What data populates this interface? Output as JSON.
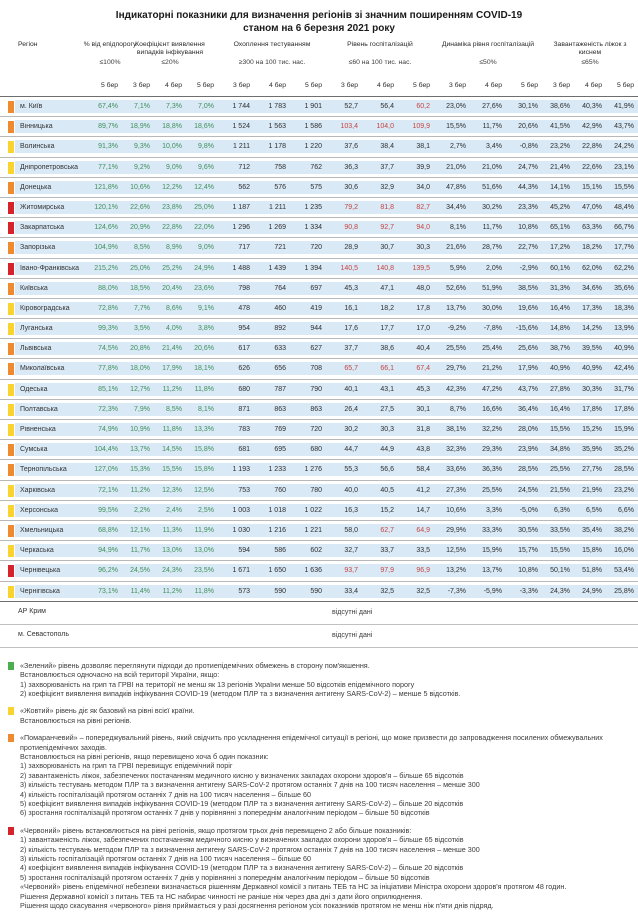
{
  "title": {
    "line1": "Індикаторні показники для визначення регіонів зі значним поширенням COVID-19",
    "line2": "станом на 6 березня 2021 року"
  },
  "colors": {
    "level_green": "#4cae4f",
    "level_yellow": "#fbd32e",
    "level_orange": "#ef8b2e",
    "level_red": "#d6232b",
    "value_green": "#3f8f5a",
    "value_red": "#c64540",
    "row_background": "#d9e9f6"
  },
  "table": {
    "region_header": "Регіон",
    "groups": [
      {
        "key": "epid",
        "label": "% від епідпорогу",
        "threshold": "≤100%",
        "dates": [
          "5 бер"
        ]
      },
      {
        "key": "coef",
        "label": "Коефіцієнт виявлення випадків інфікування",
        "threshold": "≤20%",
        "dates": [
          "3 бер",
          "4 бер",
          "5 бер"
        ]
      },
      {
        "key": "test",
        "label": "Охоплення тестуванням",
        "threshold": "≥300 на 100 тис. нас.",
        "dates": [
          "3 бер",
          "4 бер",
          "5 бер"
        ]
      },
      {
        "key": "hosp",
        "label": "Рівень госпіталізацій",
        "threshold": "≤60 на 100 тис. нас.",
        "dates": [
          "3 бер",
          "4 бер",
          "5 бер"
        ]
      },
      {
        "key": "dyn",
        "label": "Динаміка рівня госпіталізацій",
        "threshold": "≤50%",
        "dates": [
          "3 бер",
          "4 бер",
          "5 бер"
        ]
      },
      {
        "key": "beds",
        "label": "Завантаженість ліжок з киснем",
        "threshold": "≤65%",
        "dates": [
          "3 бер",
          "4 бер",
          "5 бер"
        ]
      }
    ],
    "rows": [
      {
        "region": "м. Київ",
        "level": "orange",
        "epid": "67,4%",
        "coef": [
          "7,1%",
          "7,3%",
          "7,0%"
        ],
        "test": [
          "1 744",
          "1 783",
          "1 901"
        ],
        "hosp": [
          "52,7",
          "56,4",
          "60,2"
        ],
        "hosp_red": [
          false,
          false,
          true
        ],
        "dyn": [
          "23,0%",
          "27,6%",
          "30,1%"
        ],
        "beds": [
          "38,6%",
          "40,3%",
          "41,9%"
        ]
      },
      {
        "region": "Вінницька",
        "level": "orange",
        "epid": "89,7%",
        "coef": [
          "18,9%",
          "18,8%",
          "18,6%"
        ],
        "test": [
          "1 524",
          "1 563",
          "1 586"
        ],
        "hosp": [
          "103,4",
          "104,0",
          "109,9"
        ],
        "hosp_red": [
          true,
          true,
          true
        ],
        "dyn": [
          "15,5%",
          "11,7%",
          "20,6%"
        ],
        "beds": [
          "41,5%",
          "42,9%",
          "43,7%"
        ]
      },
      {
        "region": "Волинська",
        "level": "yellow",
        "epid": "91,3%",
        "coef": [
          "9,3%",
          "10,0%",
          "9,8%"
        ],
        "test": [
          "1 211",
          "1 178",
          "1 220"
        ],
        "hosp": [
          "37,6",
          "38,4",
          "38,1"
        ],
        "hosp_red": [
          false,
          false,
          false
        ],
        "dyn": [
          "2,7%",
          "3,4%",
          "-0,8%"
        ],
        "beds": [
          "23,2%",
          "22,8%",
          "24,2%"
        ]
      },
      {
        "region": "Дніпропетровська",
        "level": "yellow",
        "epid": "77,1%",
        "coef": [
          "9,2%",
          "9,0%",
          "9,6%"
        ],
        "test": [
          "712",
          "758",
          "762"
        ],
        "hosp": [
          "36,3",
          "37,7",
          "39,9"
        ],
        "hosp_red": [
          false,
          false,
          false
        ],
        "dyn": [
          "21,0%",
          "21,0%",
          "24,7%"
        ],
        "beds": [
          "21,4%",
          "22,6%",
          "23,1%"
        ]
      },
      {
        "region": "Донецька",
        "level": "orange",
        "epid": "121,8%",
        "coef": [
          "10,6%",
          "12,2%",
          "12,4%"
        ],
        "test": [
          "562",
          "576",
          "575"
        ],
        "hosp": [
          "30,6",
          "32,9",
          "34,0"
        ],
        "hosp_red": [
          false,
          false,
          false
        ],
        "dyn": [
          "47,8%",
          "51,6%",
          "44,3%"
        ],
        "beds": [
          "14,1%",
          "15,1%",
          "15,5%"
        ]
      },
      {
        "region": "Житомирська",
        "level": "red",
        "epid": "120,1%",
        "coef": [
          "22,6%",
          "23,8%",
          "25,0%"
        ],
        "test": [
          "1 187",
          "1 211",
          "1 235"
        ],
        "hosp": [
          "79,2",
          "81,8",
          "82,7"
        ],
        "hosp_red": [
          true,
          true,
          true
        ],
        "dyn": [
          "34,4%",
          "30,2%",
          "23,3%"
        ],
        "beds": [
          "45,2%",
          "47,0%",
          "48,4%"
        ]
      },
      {
        "region": "Закарпатська",
        "level": "red",
        "epid": "124,6%",
        "coef": [
          "20,9%",
          "22,8%",
          "22,0%"
        ],
        "test": [
          "1 296",
          "1 269",
          "1 334"
        ],
        "hosp": [
          "90,8",
          "92,7",
          "94,0"
        ],
        "hosp_red": [
          true,
          true,
          true
        ],
        "dyn": [
          "8,1%",
          "11,7%",
          "10,8%"
        ],
        "beds": [
          "65,1%",
          "63,3%",
          "66,7%"
        ]
      },
      {
        "region": "Запорізька",
        "level": "orange",
        "epid": "104,9%",
        "coef": [
          "8,5%",
          "8,9%",
          "9,0%"
        ],
        "test": [
          "717",
          "721",
          "720"
        ],
        "hosp": [
          "28,9",
          "30,7",
          "30,3"
        ],
        "hosp_red": [
          false,
          false,
          false
        ],
        "dyn": [
          "21,6%",
          "28,7%",
          "22,7%"
        ],
        "beds": [
          "17,2%",
          "18,2%",
          "17,7%"
        ]
      },
      {
        "region": "Івано-Франківська",
        "level": "red",
        "epid": "215,2%",
        "coef": [
          "25,0%",
          "25,2%",
          "24,9%"
        ],
        "test": [
          "1 488",
          "1 439",
          "1 394"
        ],
        "hosp": [
          "140,5",
          "140,8",
          "139,5"
        ],
        "hosp_red": [
          true,
          true,
          true
        ],
        "dyn": [
          "5,9%",
          "2,0%",
          "-2,9%"
        ],
        "beds": [
          "60,1%",
          "62,0%",
          "62,2%"
        ]
      },
      {
        "region": "Київська",
        "level": "orange",
        "epid": "88,0%",
        "coef": [
          "18,5%",
          "20,4%",
          "23,6%"
        ],
        "test": [
          "798",
          "764",
          "697"
        ],
        "hosp": [
          "45,3",
          "47,1",
          "48,0"
        ],
        "hosp_red": [
          false,
          false,
          false
        ],
        "dyn": [
          "52,6%",
          "51,9%",
          "38,5%"
        ],
        "beds": [
          "31,3%",
          "34,6%",
          "35,6%"
        ]
      },
      {
        "region": "Кіровоградська",
        "level": "yellow",
        "epid": "72,8%",
        "coef": [
          "7,7%",
          "8,6%",
          "9,1%"
        ],
        "test": [
          "478",
          "460",
          "419"
        ],
        "hosp": [
          "16,1",
          "18,2",
          "17,8"
        ],
        "hosp_red": [
          false,
          false,
          false
        ],
        "dyn": [
          "13,7%",
          "30,0%",
          "19,6%"
        ],
        "beds": [
          "16,4%",
          "17,3%",
          "18,3%"
        ]
      },
      {
        "region": "Луганська",
        "level": "yellow",
        "epid": "99,3%",
        "coef": [
          "3,5%",
          "4,0%",
          "3,8%"
        ],
        "test": [
          "954",
          "892",
          "944"
        ],
        "hosp": [
          "17,6",
          "17,7",
          "17,0"
        ],
        "hosp_red": [
          false,
          false,
          false
        ],
        "dyn": [
          "-9,2%",
          "-7,8%",
          "-15,6%"
        ],
        "beds": [
          "14,8%",
          "14,2%",
          "13,9%"
        ]
      },
      {
        "region": "Львівська",
        "level": "orange",
        "epid": "74,5%",
        "coef": [
          "20,8%",
          "21,4%",
          "20,6%"
        ],
        "test": [
          "617",
          "633",
          "627"
        ],
        "hosp": [
          "37,7",
          "38,6",
          "40,4"
        ],
        "hosp_red": [
          false,
          false,
          false
        ],
        "dyn": [
          "25,5%",
          "25,4%",
          "25,6%"
        ],
        "beds": [
          "38,7%",
          "39,5%",
          "40,9%"
        ]
      },
      {
        "region": "Миколаївська",
        "level": "orange",
        "epid": "77,8%",
        "coef": [
          "18,0%",
          "17,9%",
          "18,1%"
        ],
        "test": [
          "626",
          "656",
          "708"
        ],
        "hosp": [
          "65,7",
          "66,1",
          "67,4"
        ],
        "hosp_red": [
          true,
          true,
          true
        ],
        "dyn": [
          "29,7%",
          "21,2%",
          "17,9%"
        ],
        "beds": [
          "40,9%",
          "40,9%",
          "42,4%"
        ]
      },
      {
        "region": "Одеська",
        "level": "yellow",
        "epid": "85,1%",
        "coef": [
          "12,7%",
          "11,2%",
          "11,8%"
        ],
        "test": [
          "680",
          "787",
          "790"
        ],
        "hosp": [
          "40,1",
          "43,1",
          "45,3"
        ],
        "hosp_red": [
          false,
          false,
          false
        ],
        "dyn": [
          "42,3%",
          "47,2%",
          "43,7%"
        ],
        "beds": [
          "27,8%",
          "30,3%",
          "31,7%"
        ]
      },
      {
        "region": "Полтавська",
        "level": "yellow",
        "epid": "72,3%",
        "coef": [
          "7,9%",
          "8,5%",
          "8,1%"
        ],
        "test": [
          "871",
          "863",
          "863"
        ],
        "hosp": [
          "26,4",
          "27,5",
          "30,1"
        ],
        "hosp_red": [
          false,
          false,
          false
        ],
        "dyn": [
          "8,7%",
          "16,6%",
          "36,4%"
        ],
        "beds": [
          "16,4%",
          "17,8%",
          "17,8%"
        ]
      },
      {
        "region": "Рівненська",
        "level": "yellow",
        "epid": "74,9%",
        "coef": [
          "10,9%",
          "11,8%",
          "13,3%"
        ],
        "test": [
          "783",
          "769",
          "720"
        ],
        "hosp": [
          "30,2",
          "30,3",
          "31,8"
        ],
        "hosp_red": [
          false,
          false,
          false
        ],
        "dyn": [
          "38,1%",
          "32,2%",
          "28,0%"
        ],
        "beds": [
          "15,5%",
          "15,2%",
          "15,9%"
        ]
      },
      {
        "region": "Сумська",
        "level": "orange",
        "epid": "104,4%",
        "coef": [
          "13,7%",
          "14,5%",
          "15,8%"
        ],
        "test": [
          "681",
          "695",
          "680"
        ],
        "hosp": [
          "44,7",
          "44,9",
          "43,8"
        ],
        "hosp_red": [
          false,
          false,
          false
        ],
        "dyn": [
          "32,3%",
          "29,3%",
          "23,9%"
        ],
        "beds": [
          "34,8%",
          "35,9%",
          "35,2%"
        ]
      },
      {
        "region": "Тернопільська",
        "level": "orange",
        "epid": "127,0%",
        "coef": [
          "15,3%",
          "15,5%",
          "15,8%"
        ],
        "test": [
          "1 193",
          "1 233",
          "1 276"
        ],
        "hosp": [
          "55,3",
          "56,6",
          "58,4"
        ],
        "hosp_red": [
          false,
          false,
          false
        ],
        "dyn": [
          "33,6%",
          "36,3%",
          "28,5%"
        ],
        "beds": [
          "25,5%",
          "27,7%",
          "28,5%"
        ]
      },
      {
        "region": "Харківська",
        "level": "yellow",
        "epid": "72,1%",
        "coef": [
          "11,2%",
          "12,3%",
          "12,5%"
        ],
        "test": [
          "753",
          "760",
          "780"
        ],
        "hosp": [
          "40,0",
          "40,5",
          "41,2"
        ],
        "hosp_red": [
          false,
          false,
          false
        ],
        "dyn": [
          "27,3%",
          "25,5%",
          "24,5%"
        ],
        "beds": [
          "21,5%",
          "21,9%",
          "23,2%"
        ]
      },
      {
        "region": "Херсонська",
        "level": "yellow",
        "epid": "99,5%",
        "coef": [
          "2,2%",
          "2,4%",
          "2,5%"
        ],
        "test": [
          "1 003",
          "1 018",
          "1 022"
        ],
        "hosp": [
          "16,3",
          "15,2",
          "14,7"
        ],
        "hosp_red": [
          false,
          false,
          false
        ],
        "dyn": [
          "10,6%",
          "3,3%",
          "-5,0%"
        ],
        "beds": [
          "6,3%",
          "6,5%",
          "6,6%"
        ]
      },
      {
        "region": "Хмельницька",
        "level": "orange",
        "epid": "68,8%",
        "coef": [
          "12,1%",
          "11,3%",
          "11,9%"
        ],
        "test": [
          "1 030",
          "1 216",
          "1 221"
        ],
        "hosp": [
          "58,0",
          "62,7",
          "64,9"
        ],
        "hosp_red": [
          false,
          true,
          true
        ],
        "dyn": [
          "29,9%",
          "33,3%",
          "30,5%"
        ],
        "beds": [
          "33,5%",
          "35,4%",
          "38,2%"
        ]
      },
      {
        "region": "Черкаська",
        "level": "yellow",
        "epid": "94,9%",
        "coef": [
          "11,7%",
          "13,0%",
          "13,0%"
        ],
        "test": [
          "594",
          "586",
          "602"
        ],
        "hosp": [
          "32,7",
          "33,7",
          "33,5"
        ],
        "hosp_red": [
          false,
          false,
          false
        ],
        "dyn": [
          "12,5%",
          "15,9%",
          "15,7%"
        ],
        "beds": [
          "15,5%",
          "15,8%",
          "16,0%"
        ]
      },
      {
        "region": "Чернівецька",
        "level": "red",
        "epid": "96,2%",
        "coef": [
          "24,5%",
          "24,3%",
          "23,5%"
        ],
        "test": [
          "1 671",
          "1 650",
          "1 636"
        ],
        "hosp": [
          "93,7",
          "97,9",
          "96,9"
        ],
        "hosp_red": [
          true,
          true,
          true
        ],
        "dyn": [
          "13,2%",
          "13,7%",
          "10,8%"
        ],
        "beds": [
          "50,1%",
          "51,8%",
          "53,4%"
        ]
      },
      {
        "region": "Чернігівська",
        "level": "yellow",
        "epid": "73,1%",
        "coef": [
          "11,4%",
          "11,2%",
          "11,8%"
        ],
        "test": [
          "573",
          "590",
          "590"
        ],
        "hosp": [
          "33,4",
          "32,5",
          "32,5"
        ],
        "hosp_red": [
          false,
          false,
          false
        ],
        "dyn": [
          "-7,3%",
          "-5,9%",
          "-3,3%"
        ],
        "beds": [
          "24,3%",
          "24,9%",
          "25,8%"
        ]
      }
    ],
    "no_data": [
      {
        "region": "АР Крим",
        "note": "відсутні дані"
      },
      {
        "region": "м. Севастополь",
        "note": "відсутні дані"
      }
    ]
  },
  "legend": [
    {
      "color": "green",
      "lines": [
        "«Зелений» рівень дозволяє переглянути підходи до протиепідемічних обмежень в сторону пом'якшення.",
        "Встановлюється одночасно на всій території України, якщо:",
        "1) захворюваність на грип та ГРВІ на території не менш як 13 регіонів України менше 50 відсотків епідемічного порогу",
        "2) коефіцієнт виявлення випадків інфікування COVID-19 (методом ПЛР та з визначення антигену SARS-CoV-2) – менше 5 відсотків."
      ]
    },
    {
      "color": "yellow",
      "lines": [
        "«Жовтий» рівень діє як базовий на рівні всієї країни.",
        "Встановлюється на рівні регіонів."
      ]
    },
    {
      "color": "orange",
      "lines": [
        "«Помаранчевий» – попереджувальний рівень, який свідчить про ускладнення епідемічної ситуації в регіоні, що може призвести до запровадження посилених обмежувальних протиепідемічних заходів.",
        "Встановлюється на рівні регіонів, якщо перевищено хоча б один показник:",
        "1) захворюваність на грип та ГРВІ перевищує епідемічний поріг",
        "2) завантаженість ліжок, забезпечених постачанням медичного кисню у визначених закладах охорони здоров'я – більше 65 відсотків",
        "3) кількість тестувань методом ПЛР та з визначення антигену SARS-CoV-2 протягом останніх 7 днів на 100 тисяч населення – менше 300",
        "4) кількість госпіталізацій протягом останніх 7 днів на 100 тисяч населення – більше 60",
        "5) коефіцієнт виявлення випадків інфікування COVID-19 (методом ПЛР та з визначення антигену SARS-CoV-2) – більше 20 відсотків",
        "6) зростання госпіталізацій протягом останніх 7 днів у порівнянні з попереднім аналогічним періодом – більше 50 відсотків"
      ]
    },
    {
      "color": "red",
      "lines": [
        "«Червоний» рівень встановлюється на рівні регіонів, якщо протягом трьох днів перевищено 2 або більше показників:",
        "1) завантаженість ліжок, забезпечених постачанням медичного кисню у визначених закладах охорони здоров'я – більше 65 відсотків",
        "2) кількість тестувань методом ПЛР та з визначення антигену SARS-CoV-2 протягом останніх 7 днів на 100 тисяч населення – менше 300",
        "3) кількість госпіталізацій протягом останніх 7 днів на 100 тисяч населення – більше 60",
        "4) коефіцієнт виявлення випадків інфікування COVID-19 (методом ПЛР та з визначення антигену SARS-CoV-2) – більше 20 відсотків",
        "5) зростання госпіталізацій протягом останніх 7 днів у порівнянні з попереднім аналогічним періодом – більше 50 відсотків",
        "«Червоний» рівень епідемічної небезпеки визначається рішенням Державної комісії з питань ТЕБ та НС за ініціативи Міністра охорони здоров'я протягом 48 годин.",
        "Рішення Державної комісії з питань ТЕБ та НС набирає чинності не раніше ніж через два дні з дати його оприлюднення.",
        "Рішення щодо скасування «червоного» рівня приймається у разі досягнення регіоном усіх показників протягом не менш ніж п'яти днів підряд."
      ]
    }
  ]
}
